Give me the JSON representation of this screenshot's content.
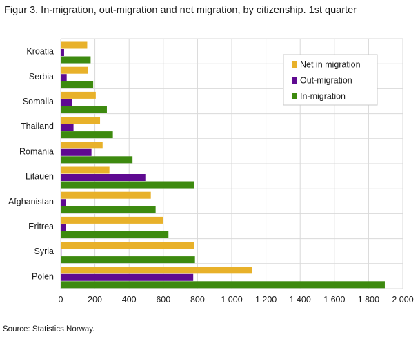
{
  "chart_data": {
    "type": "bar",
    "orientation": "horizontal",
    "title": "Figur 3. In-migration, out-migration and net migration, by citizenship. 1st quarter",
    "source": "Source: Statistics Norway.",
    "categories": [
      "Kroatia",
      "Serbia",
      "Somalia",
      "Thailand",
      "Romania",
      "Litauen",
      "Afghanistan",
      "Eritrea",
      "Syria",
      "Polen"
    ],
    "series": [
      {
        "name": "Net in migration",
        "color": "#e8b12a",
        "values": [
          155,
          160,
          205,
          230,
          245,
          285,
          527,
          600,
          780,
          1120
        ]
      },
      {
        "name": "Out-migration",
        "color": "#5f0a91",
        "values": [
          20,
          35,
          65,
          75,
          180,
          495,
          30,
          30,
          5,
          775
        ]
      },
      {
        "name": "In-migration",
        "color": "#3d8a0f",
        "values": [
          175,
          190,
          270,
          305,
          420,
          780,
          555,
          630,
          785,
          1895
        ]
      }
    ],
    "xlim": [
      0,
      2000
    ],
    "xticks": [
      0,
      200,
      400,
      600,
      800,
      1000,
      1200,
      1400,
      1600,
      1800,
      2000
    ],
    "xtick_labels": [
      "0",
      "200",
      "400",
      "600",
      "800",
      "1 000",
      "1 200",
      "1 400",
      "1 600",
      "1 800",
      "2 000"
    ],
    "grid": true,
    "legend_position": "top-right"
  }
}
